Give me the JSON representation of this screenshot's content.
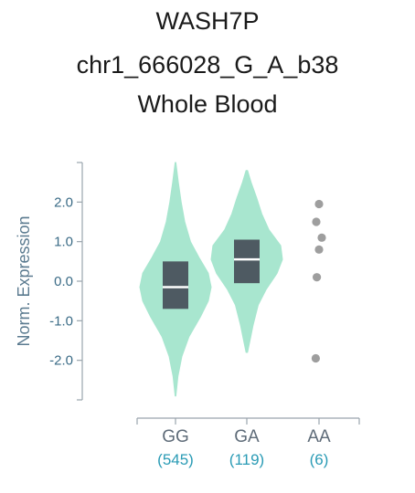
{
  "title": {
    "gene": "WASH7P",
    "variant": "chr1_666028_G_A_b38",
    "tissue": "Whole Blood"
  },
  "chart_data": {
    "type": "violin",
    "ylabel": "Norm. Expression",
    "ylim": [
      -3.0,
      3.0
    ],
    "yticks": [
      2.0,
      1.0,
      0.0,
      -1.0,
      -2.0
    ],
    "ytick_labels": [
      "2.0",
      "1.0",
      "0.0",
      "-1.0",
      "-2.0"
    ],
    "categories": [
      "GG",
      "GA",
      "AA"
    ],
    "counts": [
      "(545)",
      "(119)",
      "(6)"
    ],
    "colors": {
      "violin": "#a8e6cf",
      "box": "#4e5a62",
      "median": "#ffffff",
      "point": "#9e9e9e",
      "axis": "#9aa5ad"
    },
    "groups": [
      {
        "name": "GG",
        "kind": "violin",
        "min": -2.9,
        "max": 3.0,
        "q1": -0.7,
        "median": -0.15,
        "q3": 0.5,
        "density": [
          [
            -2.9,
            0.01
          ],
          [
            -2.4,
            0.07
          ],
          [
            -1.9,
            0.18
          ],
          [
            -1.4,
            0.38
          ],
          [
            -0.9,
            0.7
          ],
          [
            -0.5,
            0.92
          ],
          [
            -0.15,
            1.0
          ],
          [
            0.2,
            0.92
          ],
          [
            0.6,
            0.66
          ],
          [
            1.0,
            0.42
          ],
          [
            1.5,
            0.26
          ],
          [
            2.0,
            0.16
          ],
          [
            2.5,
            0.08
          ],
          [
            3.0,
            0.01
          ]
        ]
      },
      {
        "name": "GA",
        "kind": "violin",
        "min": -1.8,
        "max": 2.8,
        "q1": -0.05,
        "median": 0.55,
        "q3": 1.05,
        "density": [
          [
            -1.8,
            0.02
          ],
          [
            -1.5,
            0.09
          ],
          [
            -1.1,
            0.18
          ],
          [
            -0.6,
            0.32
          ],
          [
            -0.2,
            0.55
          ],
          [
            0.2,
            0.85
          ],
          [
            0.55,
            1.0
          ],
          [
            0.9,
            0.95
          ],
          [
            1.3,
            0.62
          ],
          [
            1.7,
            0.42
          ],
          [
            2.1,
            0.28
          ],
          [
            2.5,
            0.12
          ],
          [
            2.8,
            0.02
          ]
        ]
      },
      {
        "name": "AA",
        "kind": "points",
        "points": [
          1.95,
          1.5,
          1.1,
          0.8,
          0.1,
          -1.95
        ],
        "jitter": [
          0.0,
          -0.05,
          0.05,
          0.0,
          -0.04,
          -0.06
        ]
      }
    ]
  }
}
